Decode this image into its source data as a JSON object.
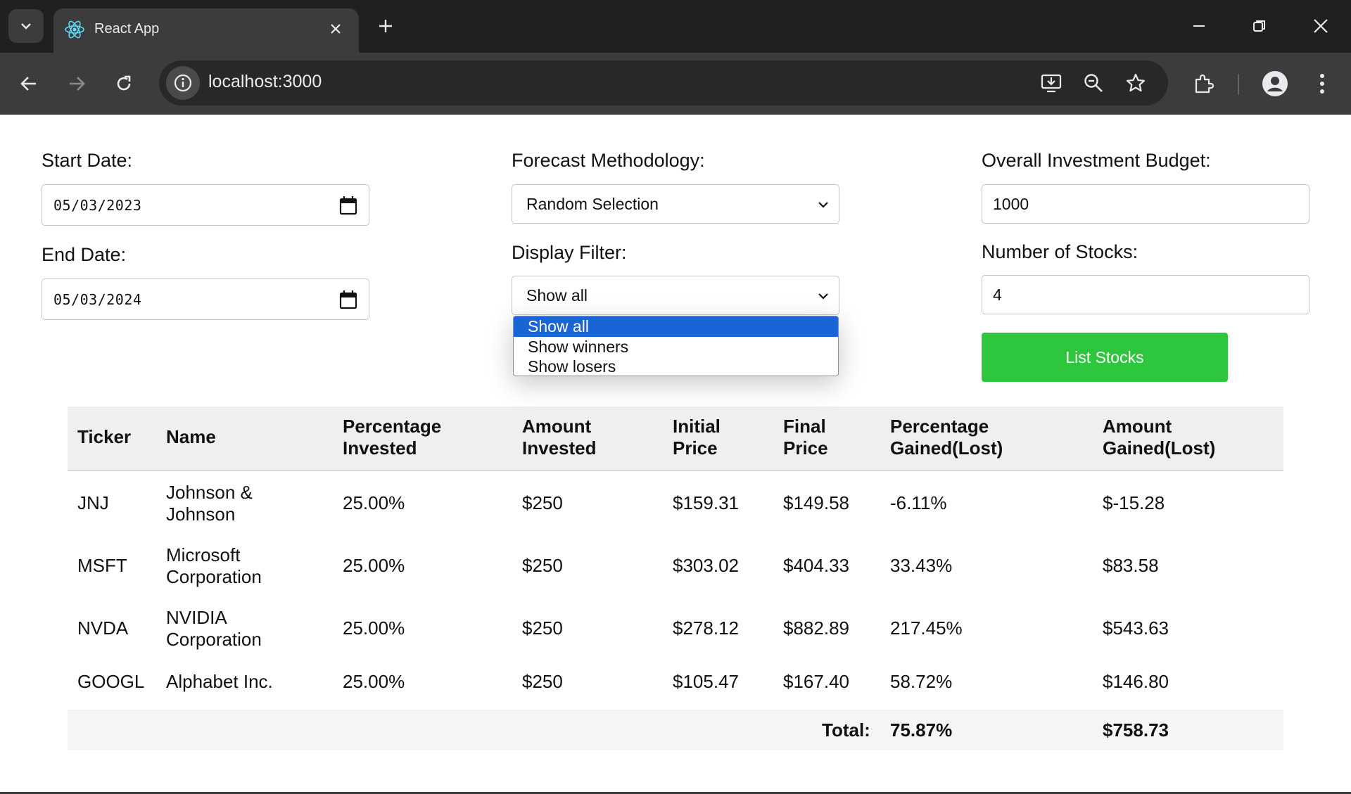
{
  "browser": {
    "tab_title": "React App",
    "url": "localhost:3000"
  },
  "form": {
    "start_date_label": "Start Date:",
    "start_date_value": "05/03/2023",
    "end_date_label": "End Date:",
    "end_date_value": "05/03/2024",
    "forecast_label": "Forecast Methodology:",
    "forecast_value": "Random Selection",
    "filter_label": "Display Filter:",
    "filter_value": "Show all",
    "filter_options": [
      "Show all",
      "Show winners",
      "Show losers"
    ],
    "budget_label": "Overall Investment Budget:",
    "budget_value": "1000",
    "num_stocks_label": "Number of Stocks:",
    "num_stocks_value": "4",
    "list_button": "List Stocks"
  },
  "table": {
    "headers": {
      "ticker": "Ticker",
      "name": "Name",
      "pct_invested_1": "Percentage",
      "pct_invested_2": "Invested",
      "amt_invested_1": "Amount",
      "amt_invested_2": "Invested",
      "initial_1": "Initial",
      "initial_2": "Price",
      "final_1": "Final",
      "final_2": "Price",
      "pct_gained_1": "Percentage",
      "pct_gained_2": "Gained(Lost)",
      "amt_gained_1": "Amount",
      "amt_gained_2": "Gained(Lost)"
    },
    "rows": [
      {
        "ticker": "JNJ",
        "name1": "Johnson &",
        "name2": "Johnson",
        "pct_invested": "25.00%",
        "amt_invested": "$250",
        "initial": "$159.31",
        "final": "$149.58",
        "pct_gained": "-6.11%",
        "amt_gained": "$-15.28"
      },
      {
        "ticker": "MSFT",
        "name1": "Microsoft",
        "name2": "Corporation",
        "pct_invested": "25.00%",
        "amt_invested": "$250",
        "initial": "$303.02",
        "final": "$404.33",
        "pct_gained": "33.43%",
        "amt_gained": "$83.58"
      },
      {
        "ticker": "NVDA",
        "name1": "NVIDIA",
        "name2": "Corporation",
        "pct_invested": "25.00%",
        "amt_invested": "$250",
        "initial": "$278.12",
        "final": "$882.89",
        "pct_gained": "217.45%",
        "amt_gained": "$543.63"
      },
      {
        "ticker": "GOOGL",
        "name1": "Alphabet Inc.",
        "name2": "",
        "pct_invested": "25.00%",
        "amt_invested": "$250",
        "initial": "$105.47",
        "final": "$167.40",
        "pct_gained": "58.72%",
        "amt_gained": "$146.80"
      }
    ],
    "total_label": "Total:",
    "total_pct": "75.87%",
    "total_amt": "$758.73"
  },
  "colors": {
    "list_button": "#2ec63c",
    "selected_option": "#1a64d6",
    "chrome_dark": "#1f2020",
    "chrome_toolbar": "#3c3c3c"
  }
}
